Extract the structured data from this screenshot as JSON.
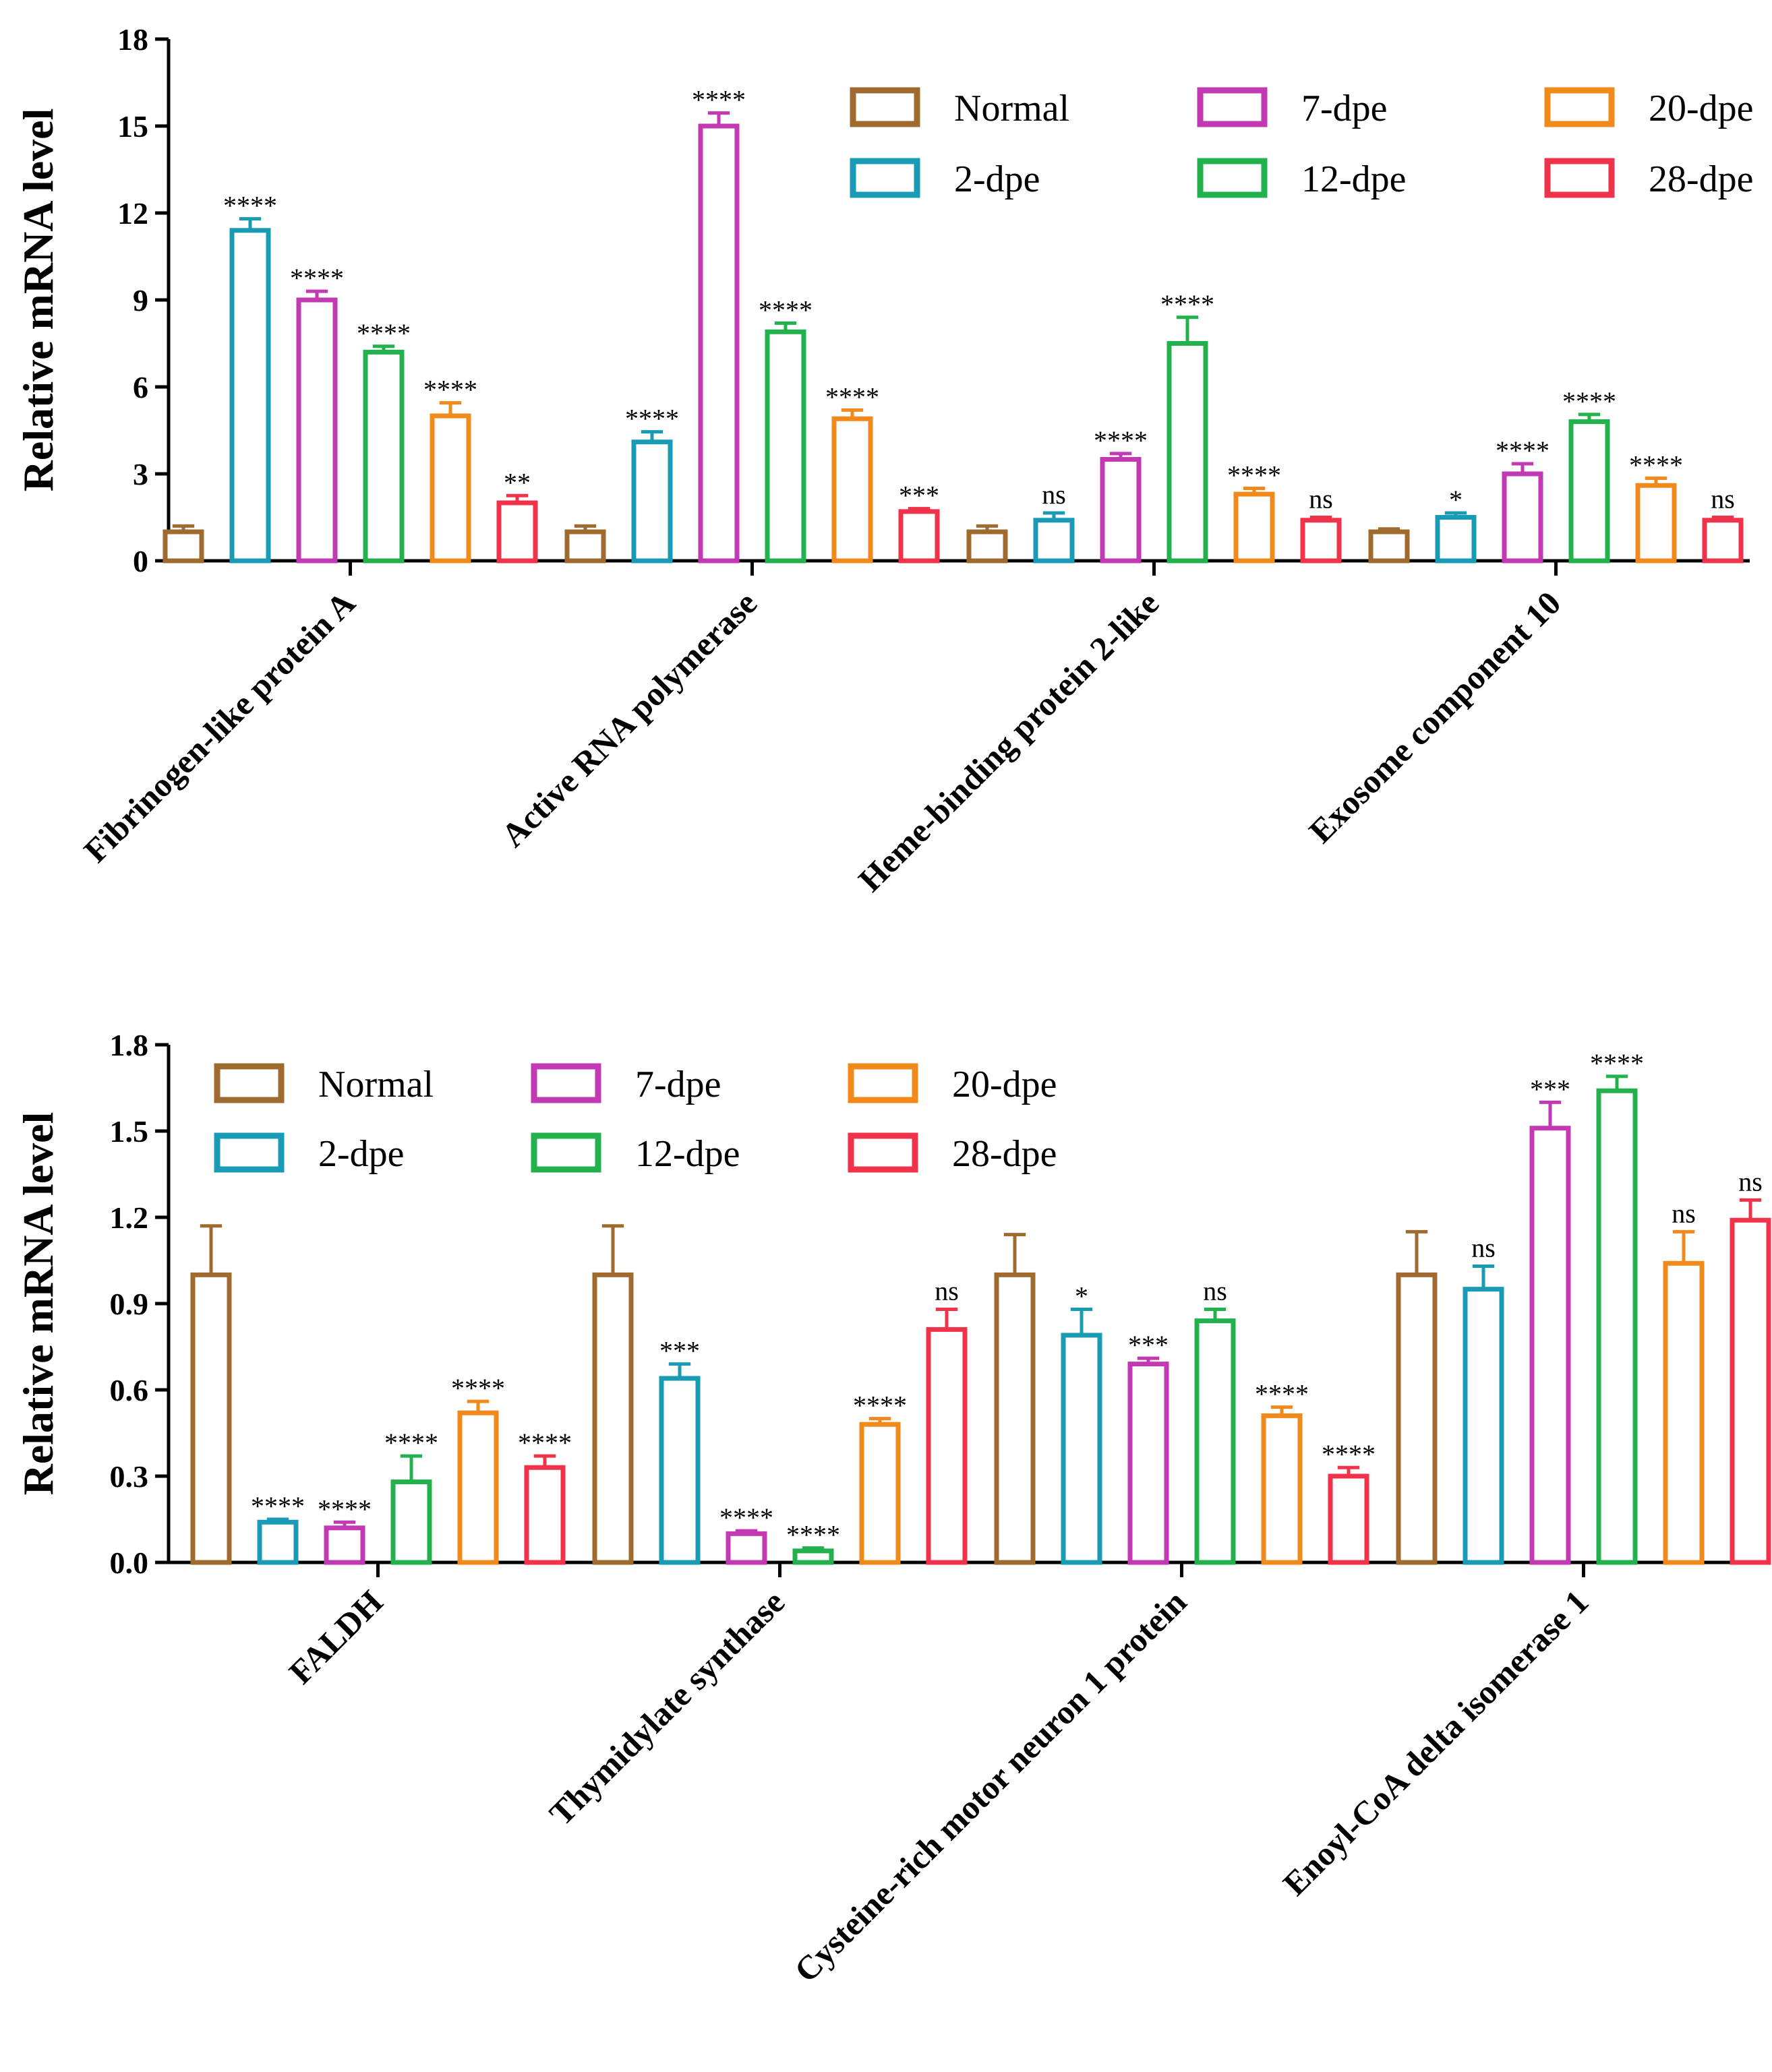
{
  "chart_data": [
    {
      "type": "bar",
      "ylabel": "Relative mRNA level",
      "ylim": [
        0,
        18
      ],
      "yticks": [
        "0",
        "3",
        "6",
        "9",
        "12",
        "15",
        "18"
      ],
      "categories": [
        "Fibrinogen-like protein A",
        "Active RNA polymerase",
        "Heme-binding protein 2-like",
        "Exosome component 10"
      ],
      "legend_position": "top-right",
      "series": [
        {
          "name": "Normal",
          "color": "#A0692E",
          "values": [
            1.0,
            1.0,
            1.0,
            1.0
          ],
          "errors": [
            0.2,
            0.2,
            0.2,
            0.1
          ],
          "sig": [
            "",
            "",
            "",
            ""
          ]
        },
        {
          "name": "2-dpe",
          "color": "#1A9BB5",
          "values": [
            11.4,
            4.1,
            1.4,
            1.5
          ],
          "errors": [
            0.4,
            0.35,
            0.25,
            0.15
          ],
          "sig": [
            "****",
            "****",
            "ns",
            "*"
          ]
        },
        {
          "name": "7-dpe",
          "color": "#C239B3",
          "values": [
            9.0,
            15.0,
            3.5,
            3.0
          ],
          "errors": [
            0.3,
            0.45,
            0.2,
            0.35
          ],
          "sig": [
            "****",
            "****",
            "****",
            "****"
          ]
        },
        {
          "name": "12-dpe",
          "color": "#22B14C",
          "values": [
            7.2,
            7.9,
            7.5,
            4.8
          ],
          "errors": [
            0.2,
            0.3,
            0.9,
            0.25
          ],
          "sig": [
            "****",
            "****",
            "****",
            "****"
          ]
        },
        {
          "name": "20-dpe",
          "color": "#F28A1B",
          "values": [
            5.0,
            4.9,
            2.3,
            2.6
          ],
          "errors": [
            0.45,
            0.3,
            0.2,
            0.25
          ],
          "sig": [
            "****",
            "****",
            "****",
            "****"
          ]
        },
        {
          "name": "28-dpe",
          "color": "#F0324A",
          "values": [
            2.0,
            1.7,
            1.4,
            1.4
          ],
          "errors": [
            0.25,
            0.1,
            0.1,
            0.1
          ],
          "sig": [
            "**",
            "***",
            "ns",
            "ns"
          ]
        }
      ]
    },
    {
      "type": "bar",
      "ylabel": "Relative mRNA level",
      "ylim": [
        0,
        1.8
      ],
      "yticks": [
        "0.0",
        "0.3",
        "0.6",
        "0.9",
        "1.2",
        "1.5",
        "1.8"
      ],
      "categories": [
        "FALDH",
        "Thymidylate synthase",
        "Cysteine-rich motor neuron 1 protein",
        "Enoyl-CoA delta isomerase 1"
      ],
      "legend_position": "top-left",
      "series": [
        {
          "name": "Normal",
          "color": "#A0692E",
          "values": [
            1.0,
            1.0,
            1.0,
            1.0
          ],
          "errors": [
            0.17,
            0.17,
            0.14,
            0.15
          ],
          "sig": [
            "",
            "",
            "",
            ""
          ]
        },
        {
          "name": "2-dpe",
          "color": "#1A9BB5",
          "values": [
            0.14,
            0.64,
            0.79,
            0.95
          ],
          "errors": [
            0.01,
            0.05,
            0.09,
            0.08
          ],
          "sig": [
            "****",
            "***",
            "*",
            "ns"
          ]
        },
        {
          "name": "7-dpe",
          "color": "#C239B3",
          "values": [
            0.12,
            0.1,
            0.69,
            1.51
          ],
          "errors": [
            0.02,
            0.01,
            0.02,
            0.09
          ],
          "sig": [
            "****",
            "****",
            "***",
            "***"
          ]
        },
        {
          "name": "12-dpe",
          "color": "#22B14C",
          "values": [
            0.28,
            0.04,
            0.84,
            1.64
          ],
          "errors": [
            0.09,
            0.01,
            0.04,
            0.05
          ],
          "sig": [
            "****",
            "****",
            "ns",
            "****"
          ]
        },
        {
          "name": "20-dpe",
          "color": "#F28A1B",
          "values": [
            0.52,
            0.48,
            0.51,
            1.04
          ],
          "errors": [
            0.04,
            0.02,
            0.03,
            0.11
          ],
          "sig": [
            "****",
            "****",
            "****",
            "ns"
          ]
        },
        {
          "name": "28-dpe",
          "color": "#F0324A",
          "values": [
            0.33,
            0.81,
            0.3,
            1.19
          ],
          "errors": [
            0.04,
            0.07,
            0.03,
            0.07
          ],
          "sig": [
            "****",
            "ns",
            "****",
            "ns"
          ]
        }
      ]
    }
  ]
}
